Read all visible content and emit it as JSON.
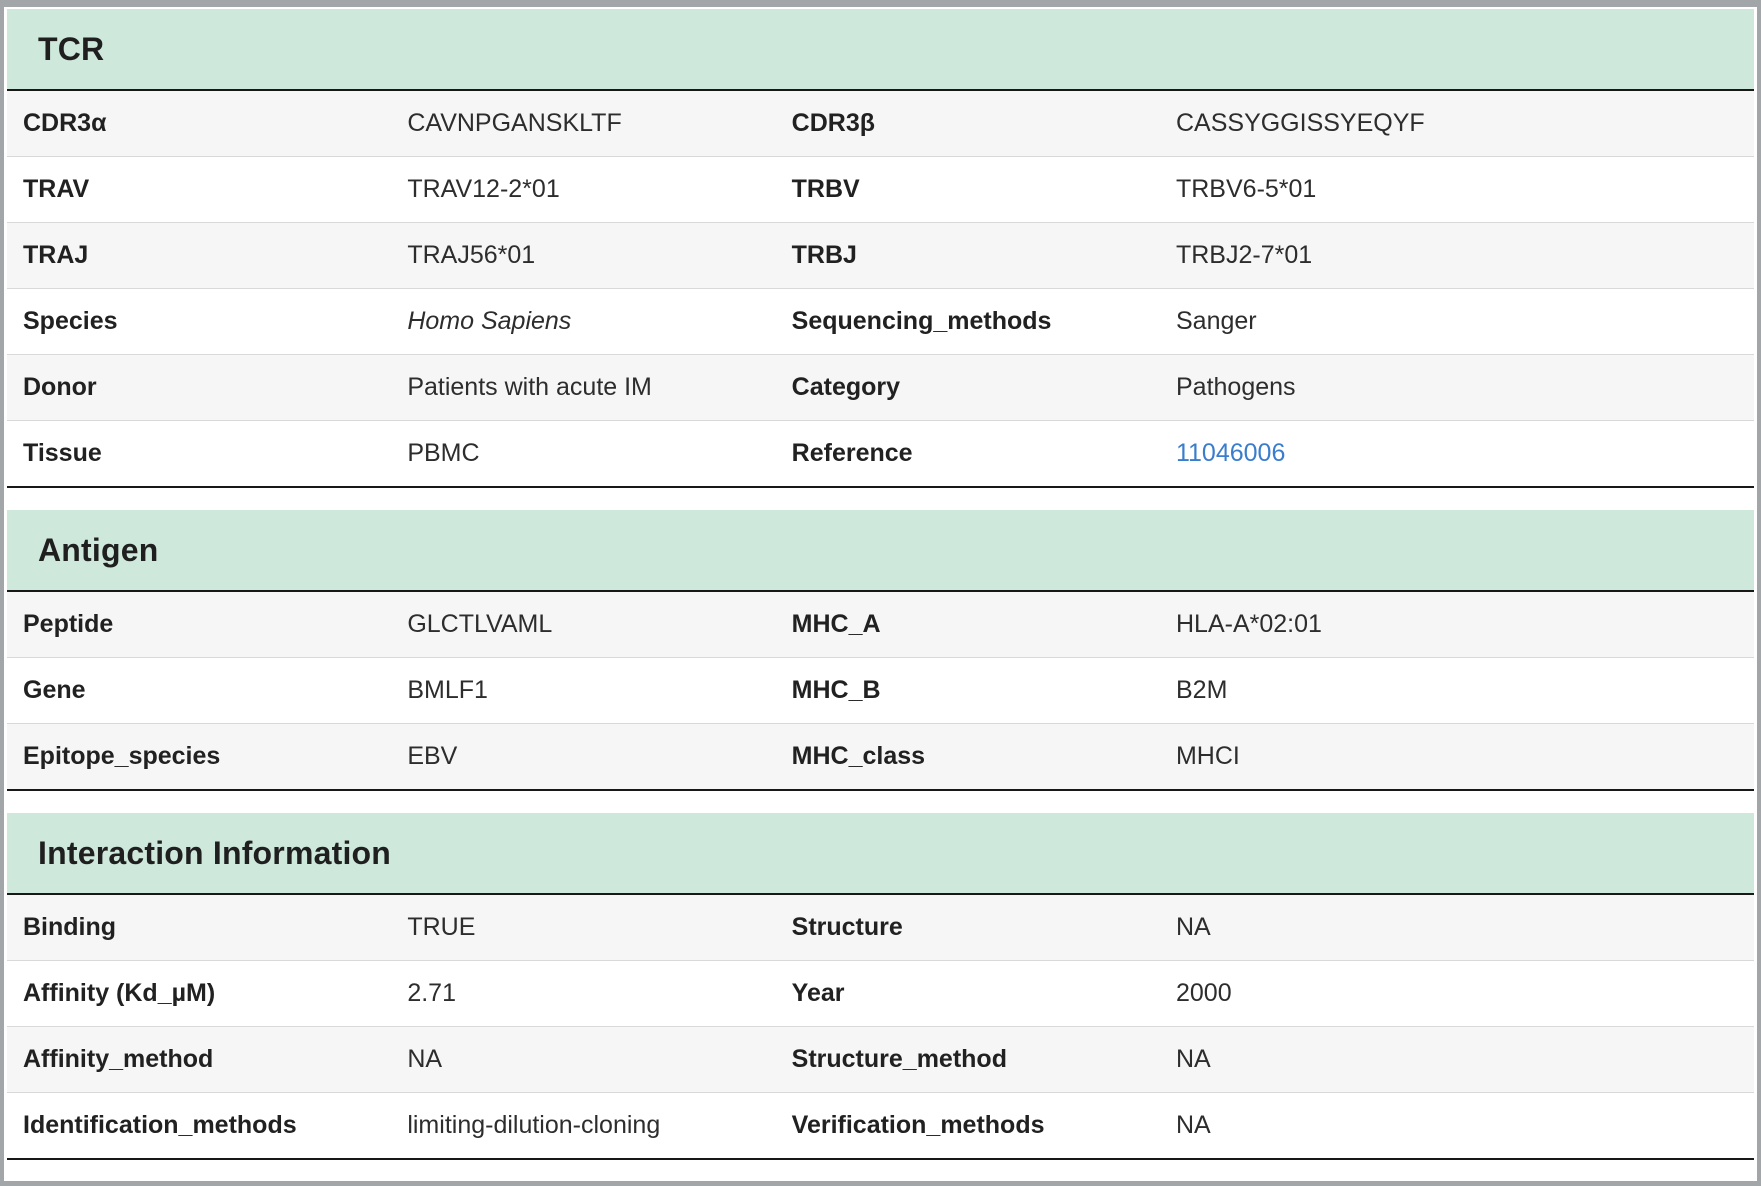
{
  "colors": {
    "section_header_bg": "#cfe8dc",
    "link": "#3a7dcd",
    "divider_dark": "#181818",
    "row_stripe": "#f6f6f6"
  },
  "sections": [
    {
      "title": "TCR",
      "rows": [
        [
          {
            "label": "CDR3α",
            "value": "CAVNPGANSKLTF"
          },
          {
            "label": "CDR3β",
            "value": "CASSYGGISSYEQYF"
          }
        ],
        [
          {
            "label": "TRAV",
            "value": "TRAV12-2*01"
          },
          {
            "label": "TRBV",
            "value": "TRBV6-5*01"
          }
        ],
        [
          {
            "label": "TRAJ",
            "value": "TRAJ56*01"
          },
          {
            "label": "TRBJ",
            "value": "TRBJ2-7*01"
          }
        ],
        [
          {
            "label": "Species",
            "value": "Homo Sapiens",
            "italic": true
          },
          {
            "label": "Sequencing_methods",
            "value": "Sanger"
          }
        ],
        [
          {
            "label": "Donor",
            "value": "Patients with acute IM"
          },
          {
            "label": "Category",
            "value": "Pathogens"
          }
        ],
        [
          {
            "label": "Tissue",
            "value": "PBMC"
          },
          {
            "label": "Reference",
            "value": "11046006",
            "link": true
          }
        ]
      ]
    },
    {
      "title": "Antigen",
      "rows": [
        [
          {
            "label": "Peptide",
            "value": "GLCTLVAML"
          },
          {
            "label": "MHC_A",
            "value": "HLA-A*02:01"
          }
        ],
        [
          {
            "label": "Gene",
            "value": "BMLF1"
          },
          {
            "label": "MHC_B",
            "value": "B2M"
          }
        ],
        [
          {
            "label": "Epitope_species",
            "value": "EBV"
          },
          {
            "label": "MHC_class",
            "value": "MHCI"
          }
        ]
      ]
    },
    {
      "title": "Interaction Information",
      "rows": [
        [
          {
            "label": "Binding",
            "value": "TRUE"
          },
          {
            "label": "Structure",
            "value": "NA"
          }
        ],
        [
          {
            "label": "Affinity (Kd_µM)",
            "value": "2.71"
          },
          {
            "label": "Year",
            "value": "2000"
          }
        ],
        [
          {
            "label": "Affinity_method",
            "value": "NA"
          },
          {
            "label": "Structure_method",
            "value": "NA"
          }
        ],
        [
          {
            "label": "Identification_methods",
            "value": "limiting-dilution-cloning"
          },
          {
            "label": "Verification_methods",
            "value": "NA"
          }
        ]
      ]
    }
  ]
}
